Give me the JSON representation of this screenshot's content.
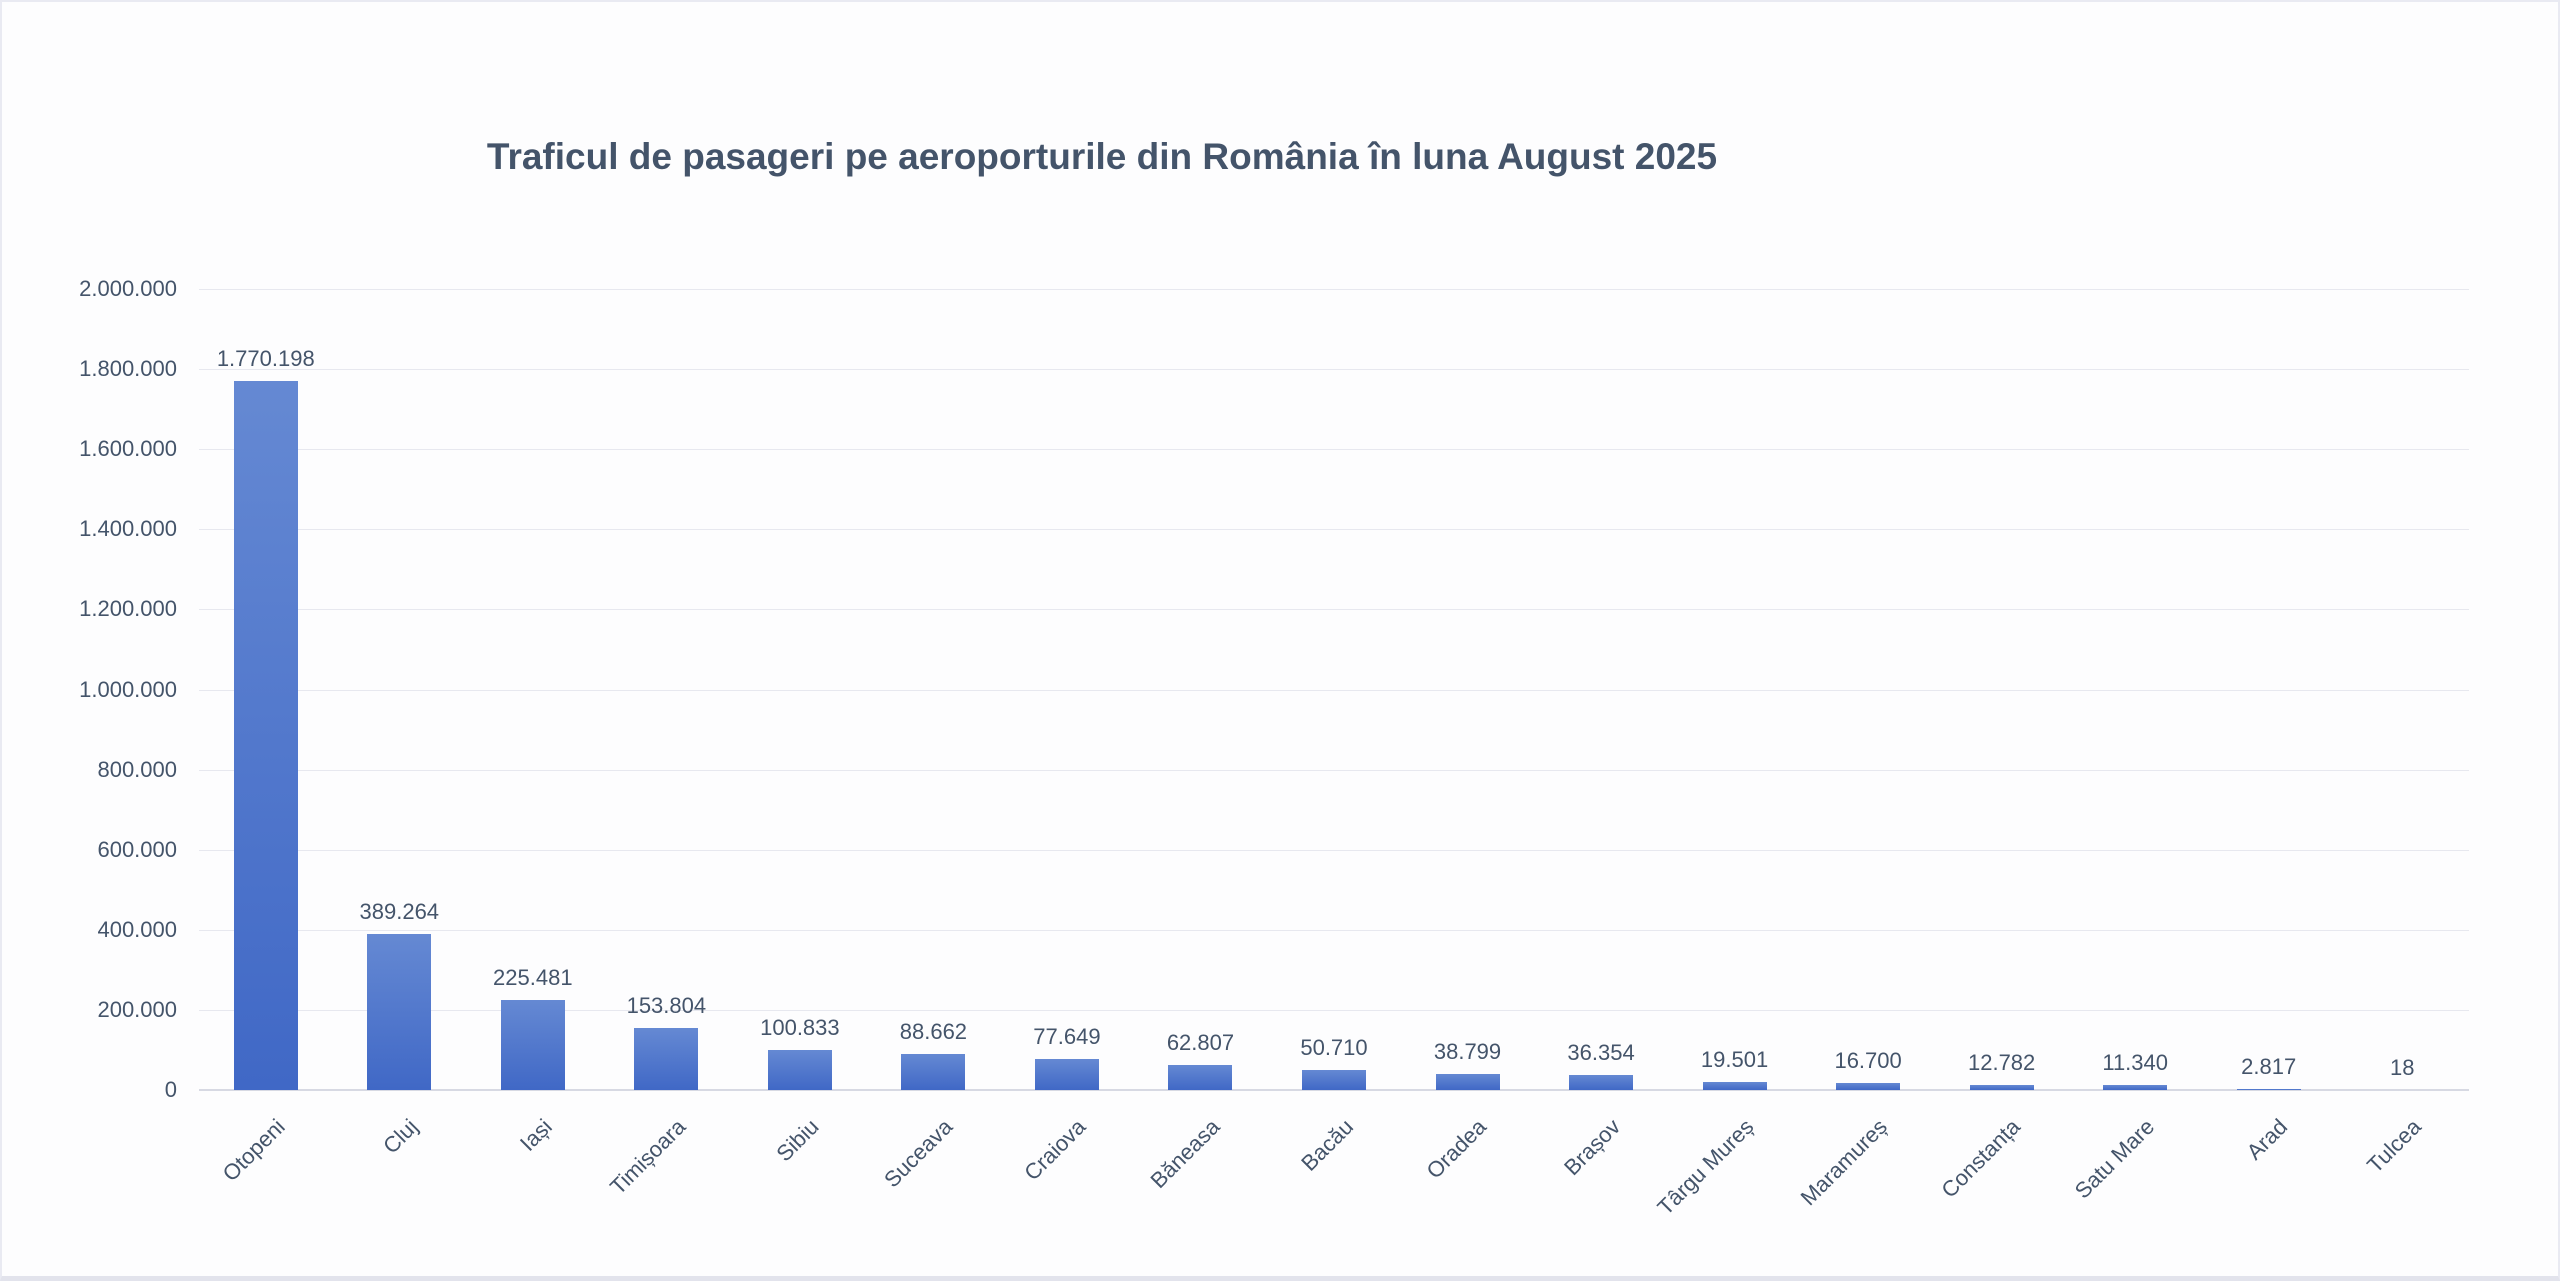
{
  "chart_data": {
    "type": "bar",
    "title": "Traficul de pasageri pe aeroporturile din România în luna August 2025",
    "categories": [
      "Otopeni",
      "Cluj",
      "Iași",
      "Timișoara",
      "Sibiu",
      "Suceava",
      "Craiova",
      "Băneasa",
      "Bacău",
      "Oradea",
      "Brașov",
      "Târgu Mureș",
      "Maramureș",
      "Constanța",
      "Satu Mare",
      "Arad",
      "Tulcea"
    ],
    "values": [
      1770198,
      389264,
      225481,
      153804,
      100833,
      88662,
      77649,
      62807,
      50710,
      38799,
      36354,
      19501,
      16700,
      12782,
      11340,
      2817,
      18
    ],
    "value_labels": [
      "1.770.198",
      "389.264",
      "225.481",
      "153.804",
      "100.833",
      "88.662",
      "77.649",
      "62.807",
      "50.710",
      "38.799",
      "36.354",
      "19.501",
      "16.700",
      "12.782",
      "11.340",
      "2.817",
      "18"
    ],
    "xlabel": "",
    "ylabel": "",
    "ylim": [
      0,
      2000000
    ],
    "ytick_step": 200000,
    "ytick_labels": [
      "0",
      "200.000",
      "400.000",
      "600.000",
      "800.000",
      "1.000.000",
      "1.200.000",
      "1.400.000",
      "1.600.000",
      "1.800.000",
      "2.000.000"
    ],
    "grid": true,
    "legend": "none",
    "colors": {
      "bar_top": "#6589d3",
      "bar_bottom": "#4068c6",
      "text": "#44546A",
      "gridline": "#e7e8ef",
      "axis_line": "#d7d9e3",
      "background": "#fdfdfe"
    }
  }
}
